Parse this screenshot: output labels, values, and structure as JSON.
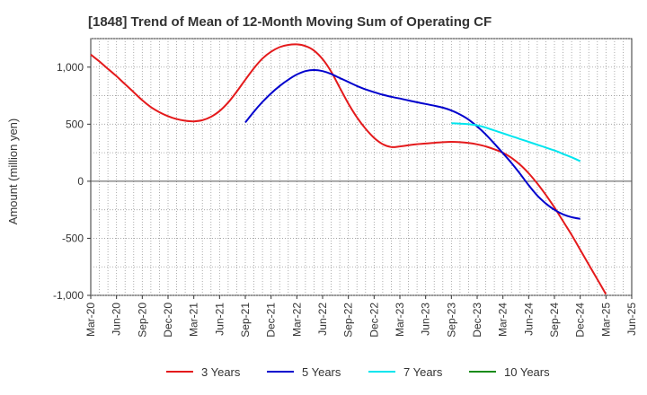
{
  "chart_data": {
    "type": "line",
    "title": "[1848]  Trend of Mean of 12-Month Moving Sum of Operating CF",
    "xlabel": "",
    "ylabel": "Amount (million yen)",
    "ylim": [
      -1000,
      1250
    ],
    "yticks": [
      -1000,
      -500,
      0,
      500,
      1000
    ],
    "ytick_labels": [
      "-1,000",
      "-500",
      "0",
      "500",
      "1,000"
    ],
    "x_months": [
      "Mar-20",
      "Apr-20",
      "May-20",
      "Jun-20",
      "Jul-20",
      "Aug-20",
      "Sep-20",
      "Oct-20",
      "Nov-20",
      "Dec-20",
      "Jan-21",
      "Feb-21",
      "Mar-21",
      "Apr-21",
      "May-21",
      "Jun-21",
      "Jul-21",
      "Aug-21",
      "Sep-21",
      "Oct-21",
      "Nov-21",
      "Dec-21",
      "Jan-22",
      "Feb-22",
      "Mar-22",
      "Apr-22",
      "May-22",
      "Jun-22",
      "Jul-22",
      "Aug-22",
      "Sep-22",
      "Oct-22",
      "Nov-22",
      "Dec-22",
      "Jan-23",
      "Feb-23",
      "Mar-23",
      "Apr-23",
      "May-23",
      "Jun-23",
      "Jul-23",
      "Aug-23",
      "Sep-23",
      "Oct-23",
      "Nov-23",
      "Dec-23",
      "Jan-24",
      "Feb-24",
      "Mar-24",
      "Apr-24",
      "May-24",
      "Jun-24",
      "Jul-24",
      "Aug-24",
      "Sep-24",
      "Oct-24",
      "Nov-24",
      "Dec-24",
      "Jan-25",
      "Feb-25",
      "Mar-25",
      "Apr-25",
      "May-25",
      "Jun-25"
    ],
    "xtick_labels": [
      "Mar-20",
      "Jun-20",
      "Sep-20",
      "Dec-20",
      "Mar-21",
      "Jun-21",
      "Sep-21",
      "Dec-21",
      "Mar-22",
      "Jun-22",
      "Sep-22",
      "Dec-22",
      "Mar-23",
      "Jun-23",
      "Sep-23",
      "Dec-23",
      "Mar-24",
      "Jun-24",
      "Sep-24",
      "Dec-24",
      "Mar-25",
      "Jun-25"
    ],
    "grid": true,
    "legend_position": "bottom",
    "series": [
      {
        "name": "3 Years",
        "color": "#e41a1c",
        "start": "Mar-20",
        "values": [
          1110,
          1050,
          985,
          920,
          850,
          780,
          710,
          650,
          605,
          570,
          545,
          530,
          525,
          535,
          565,
          615,
          690,
          785,
          890,
          990,
          1075,
          1135,
          1175,
          1195,
          1200,
          1185,
          1145,
          1070,
          960,
          820,
          680,
          560,
          460,
          380,
          325,
          300,
          305,
          315,
          325,
          330,
          337,
          342,
          345,
          342,
          335,
          323,
          305,
          280,
          250,
          205,
          145,
          70,
          -20,
          -120,
          -230,
          -350,
          -470,
          -600,
          -730,
          -860,
          -990
        ]
      },
      {
        "name": "5 Years",
        "color": "#0000cd",
        "start": "Mar-20",
        "values": [
          null,
          null,
          null,
          null,
          null,
          null,
          null,
          null,
          null,
          null,
          null,
          null,
          null,
          null,
          null,
          null,
          null,
          null,
          515,
          610,
          695,
          770,
          835,
          890,
          935,
          965,
          975,
          965,
          940,
          905,
          870,
          835,
          805,
          780,
          758,
          740,
          725,
          708,
          692,
          677,
          662,
          645,
          620,
          585,
          540,
          480,
          410,
          330,
          245,
          160,
          65,
          -35,
          -125,
          -195,
          -250,
          -290,
          -315,
          -330
        ]
      },
      {
        "name": "7 Years",
        "color": "#00e5ee",
        "start": "Mar-20",
        "values": [
          null,
          null,
          null,
          null,
          null,
          null,
          null,
          null,
          null,
          null,
          null,
          null,
          null,
          null,
          null,
          null,
          null,
          null,
          null,
          null,
          null,
          null,
          null,
          null,
          null,
          null,
          null,
          null,
          null,
          null,
          null,
          null,
          null,
          null,
          null,
          null,
          null,
          null,
          null,
          null,
          null,
          null,
          508,
          505,
          500,
          490,
          470,
          445,
          420,
          395,
          370,
          345,
          320,
          295,
          270,
          240,
          210,
          175
        ]
      },
      {
        "name": "10 Years",
        "color": "#1a8c1a",
        "start": "Mar-20",
        "values": []
      }
    ]
  }
}
